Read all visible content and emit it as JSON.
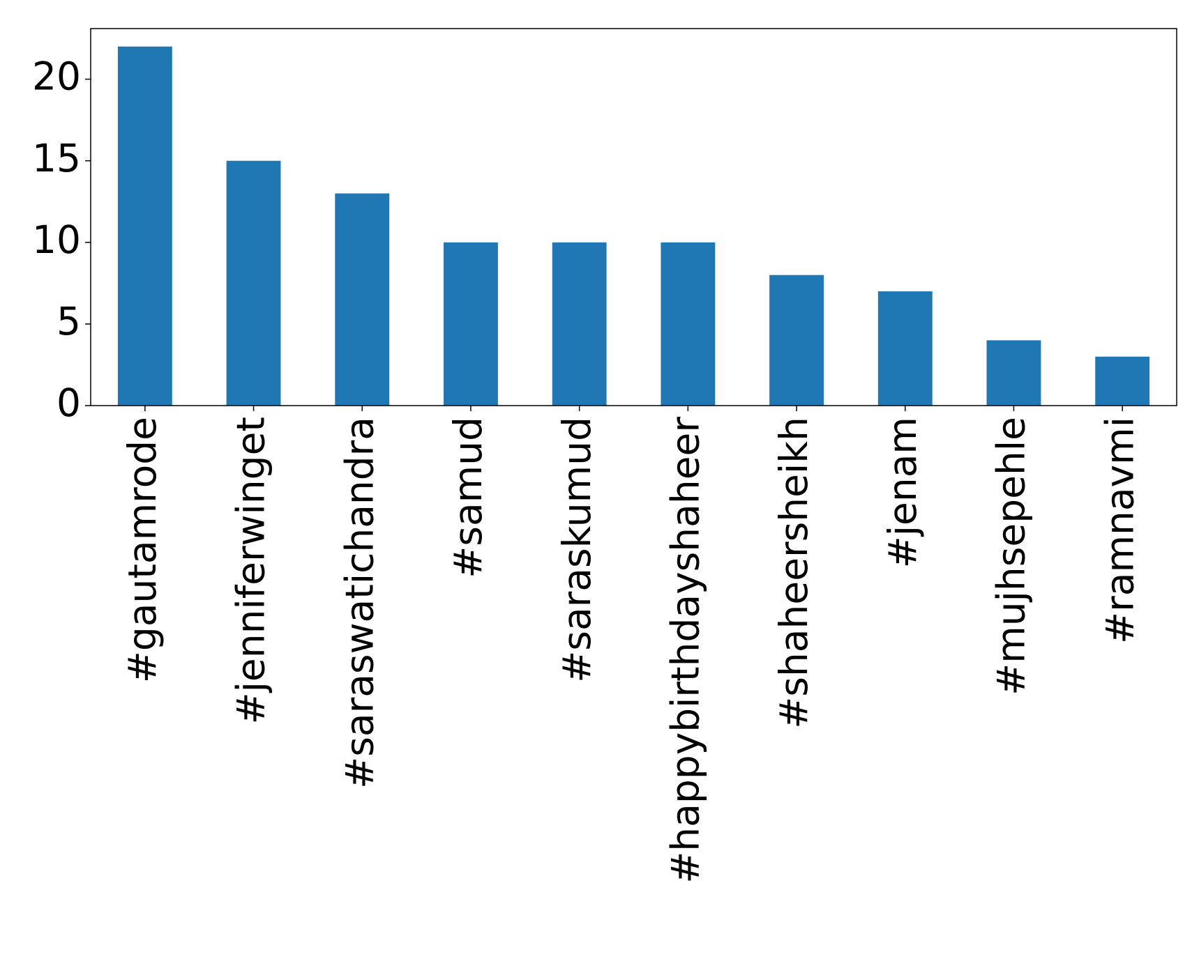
{
  "chart_data": {
    "type": "bar",
    "categories": [
      "#gautamrode",
      "#jenniferwinget",
      "#saraswatichandra",
      "#samud",
      "#saraskumud",
      "#happybirthdayshaheer",
      "#shaheersheikh",
      "#jenam",
      "#mujhsepehle",
      "#ramnavmi"
    ],
    "values": [
      22,
      15,
      13,
      10,
      10,
      10,
      8,
      7,
      4,
      3
    ],
    "color": "#1f77b4",
    "ylim": [
      0,
      23.1
    ],
    "yticks": [
      0,
      5,
      10,
      15,
      20
    ],
    "grid": false
  }
}
